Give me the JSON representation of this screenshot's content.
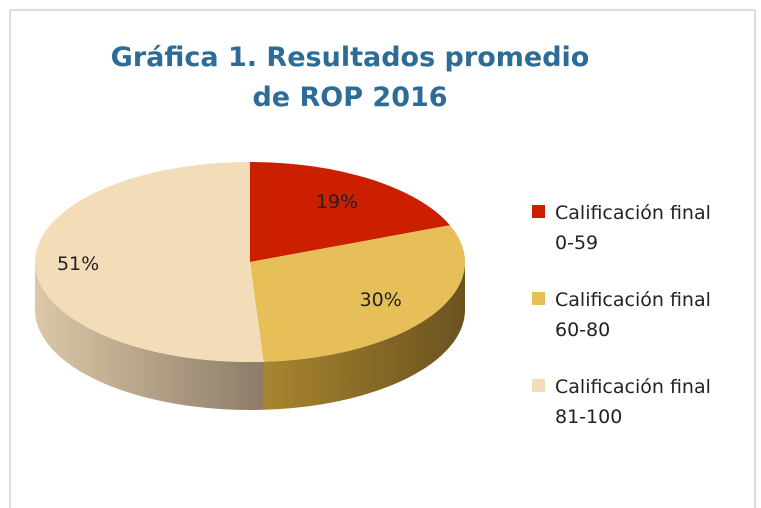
{
  "chart_data": {
    "type": "pie",
    "title": "Gráfica 1. Resultados promedio de ROP 2016",
    "categories": [
      "Calificación final 0-59",
      "Calificación final 60-80",
      "Calificación final 81-100"
    ],
    "values": [
      19,
      30,
      51
    ],
    "value_labels": [
      "19%",
      "30%",
      "51%"
    ],
    "colors": [
      "#cc1f00",
      "#e6bf58",
      "#f3dcb8"
    ],
    "legend": "right"
  }
}
